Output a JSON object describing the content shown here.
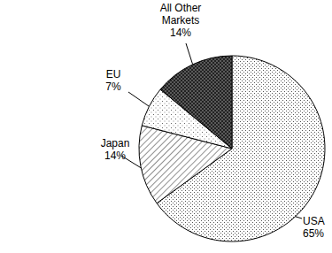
{
  "chart_data": {
    "type": "pie",
    "categories": [
      "USA",
      "Japan",
      "EU",
      "All Other Markets"
    ],
    "values": [
      65,
      14,
      7,
      14
    ],
    "value_labels": [
      "65%",
      "14%",
      "7%",
      "14%"
    ],
    "colors": [
      "#ffffff",
      "#ffffff",
      "#ffffff",
      "#5a5a5a"
    ],
    "data_labels": true
  }
}
